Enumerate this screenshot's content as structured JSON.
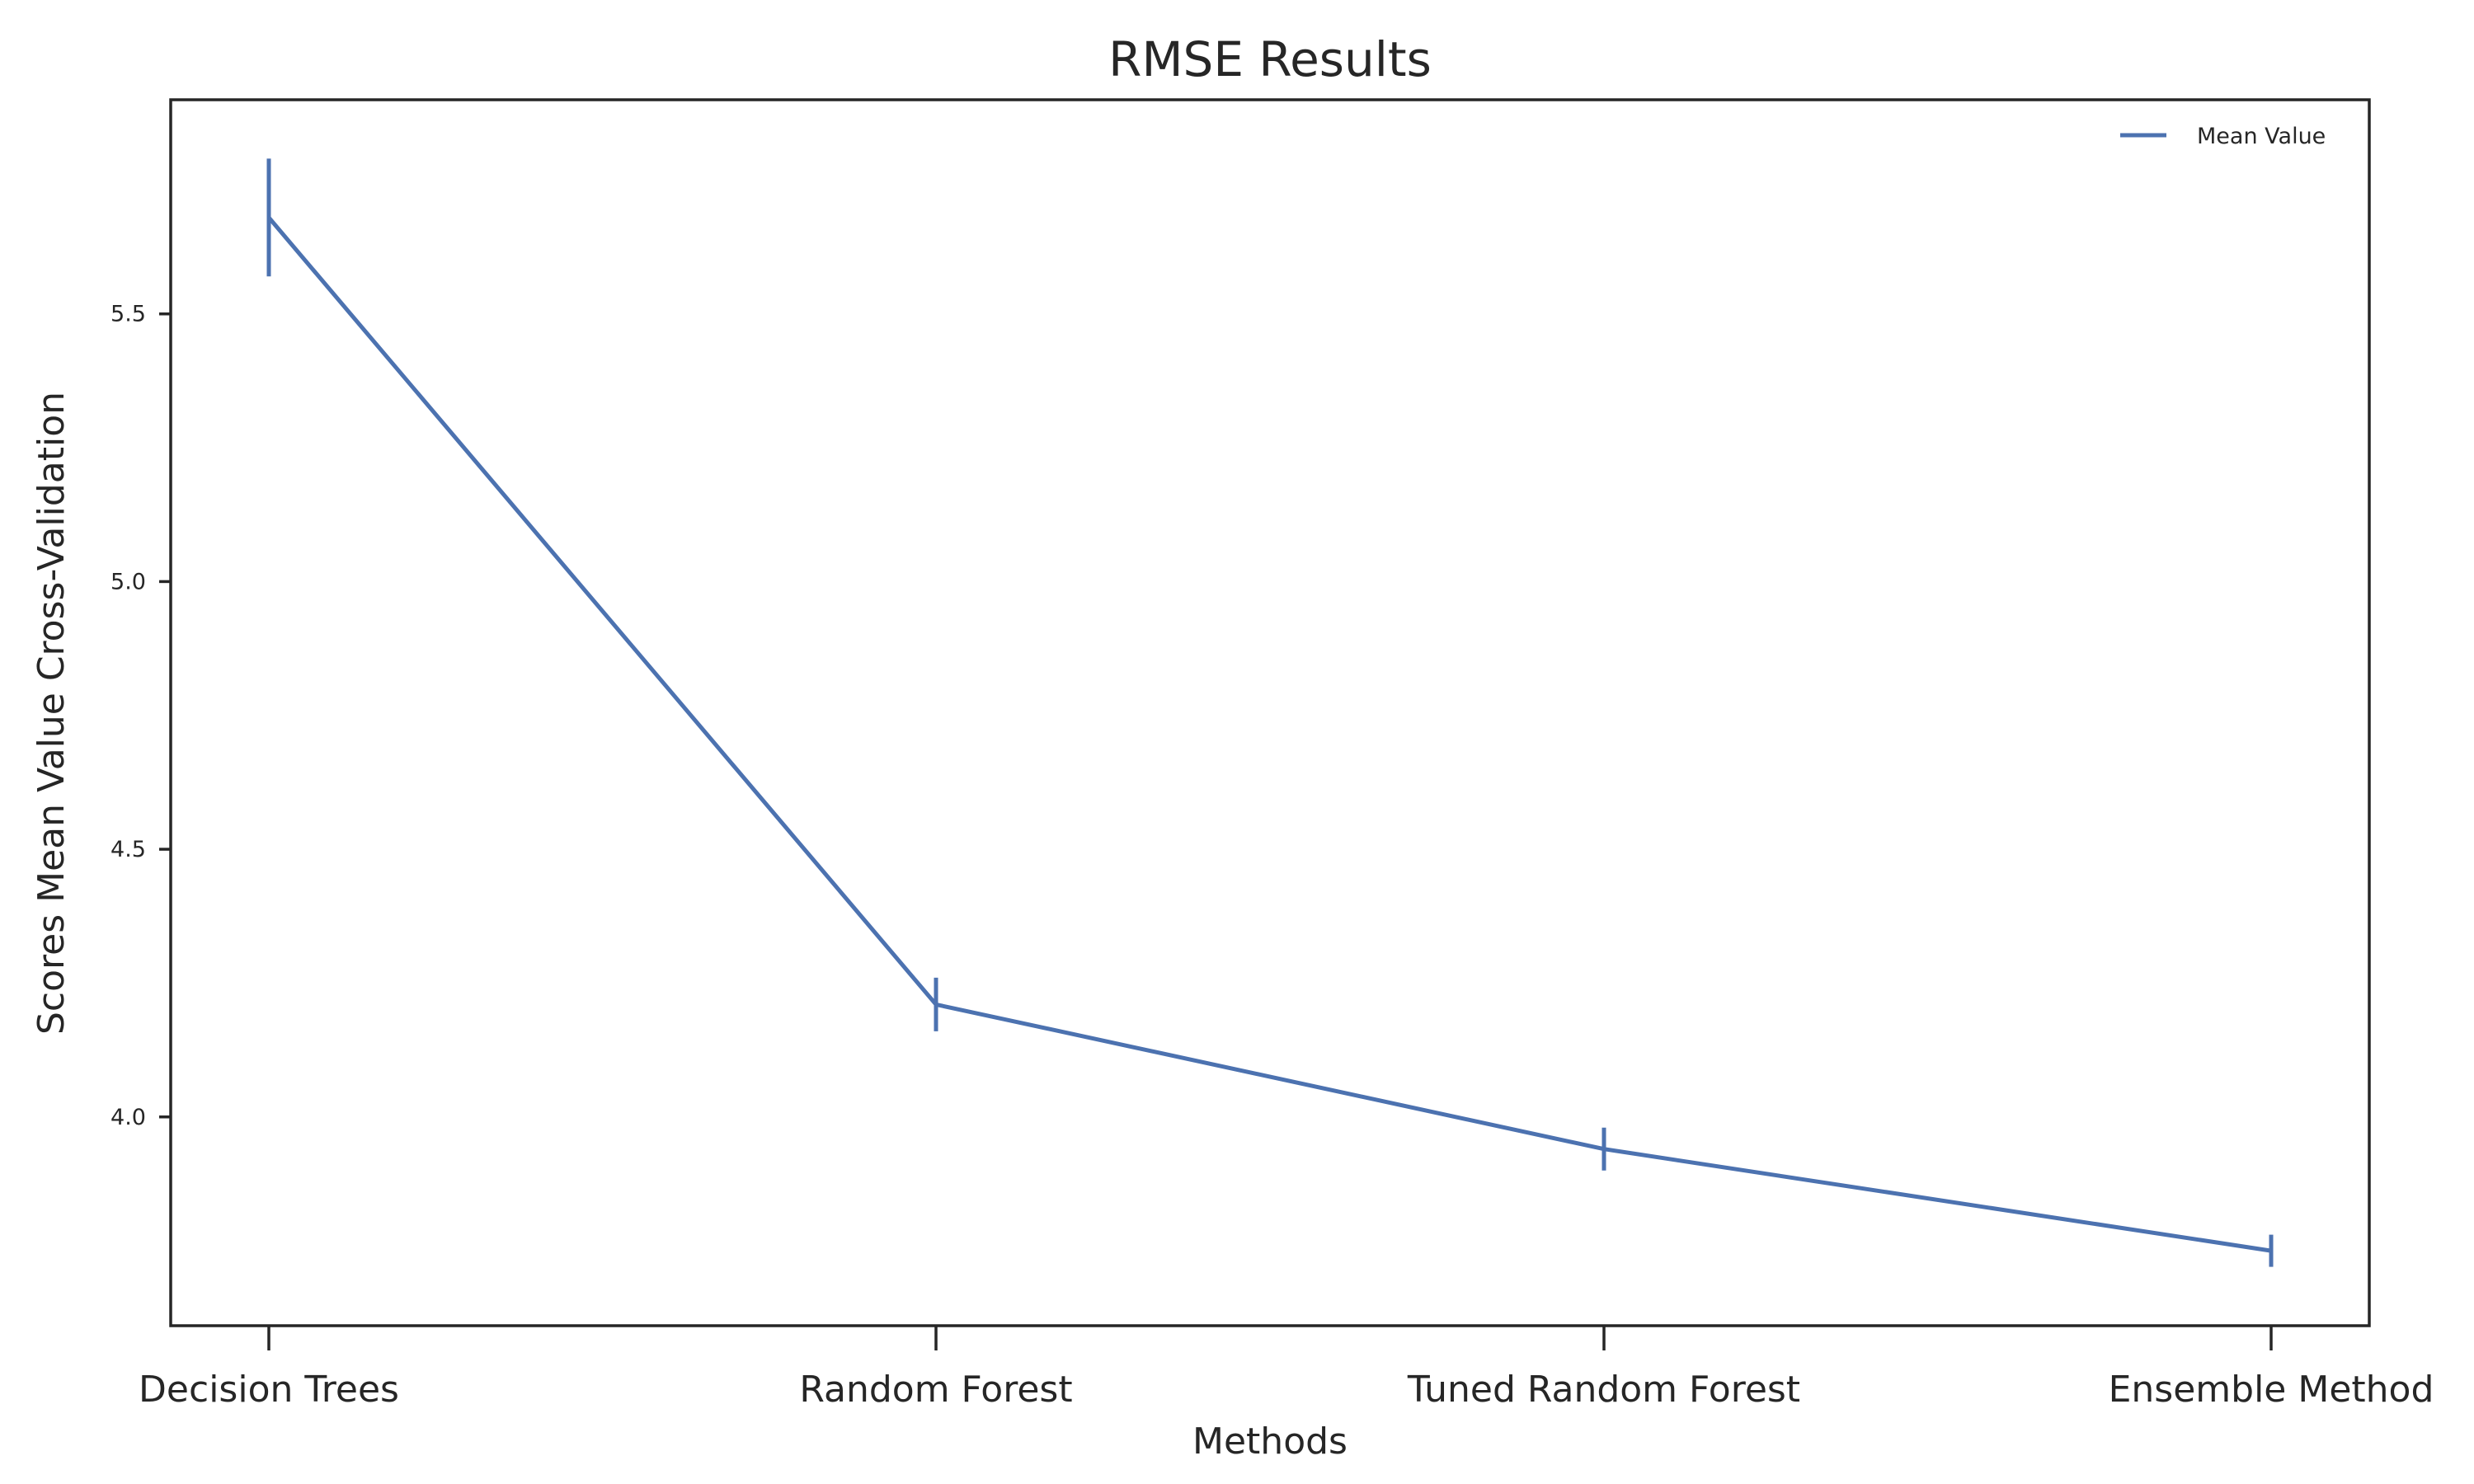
{
  "chart_data": {
    "type": "line",
    "title": "RMSE Results",
    "xlabel": "Methods",
    "ylabel": "Scores Mean Value Cross-Validation",
    "categories": [
      "Decision Trees",
      "Random Forest",
      "Tuned Random Forest",
      "Ensemble Method"
    ],
    "series": [
      {
        "name": "Mean Value",
        "values": [
          5.68,
          4.21,
          3.94,
          3.75
        ],
        "error": [
          0.11,
          0.05,
          0.04,
          0.03
        ],
        "color": "#4c72b0"
      }
    ],
    "ylim": [
      3.61,
      5.9
    ],
    "yticks": [
      "4.0",
      "4.5",
      "5.0",
      "5.5"
    ],
    "grid": false,
    "legend": "top-right"
  }
}
